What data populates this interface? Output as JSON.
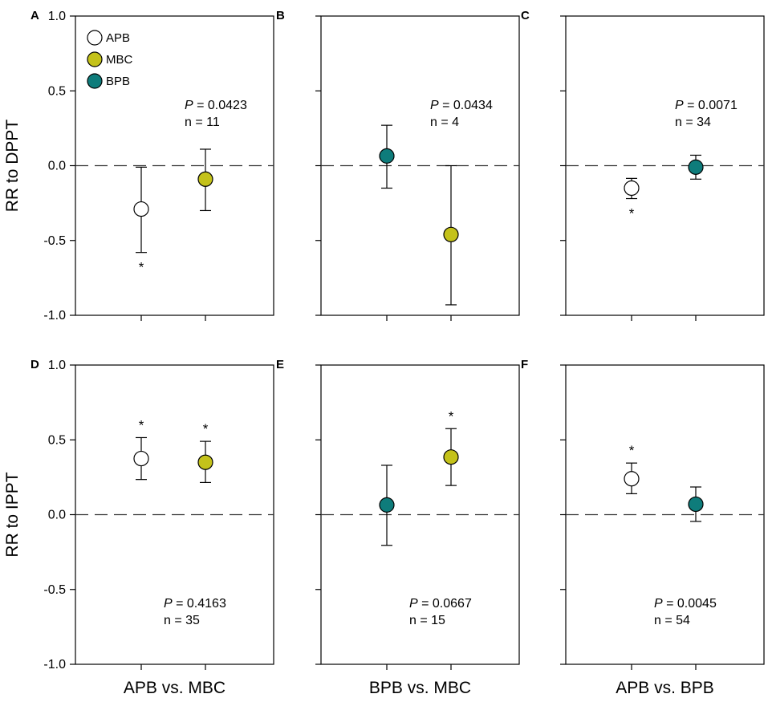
{
  "chart_data": {
    "type": "scatter",
    "subtype": "point-with-error-bars",
    "ylim": [
      -1.0,
      1.0
    ],
    "yticks": [
      -1.0,
      -0.5,
      0.0,
      0.5,
      1.0
    ],
    "yticklabels": [
      "-1.0",
      "-0.5",
      "0.0",
      "0.5",
      "1.0"
    ],
    "reference_line": 0.0,
    "row_ylabels": [
      "RR to DPPT",
      "RR to IPPT"
    ],
    "column_xlabels": [
      "APB vs. MBC",
      "BPB vs. MBC",
      "APB vs. BPB"
    ],
    "significance_marker": "*",
    "colors": {
      "APB": "#ffffff",
      "MBC": "#c4c21a",
      "BPB": "#0e7c7b"
    },
    "legend": [
      {
        "name": "APB",
        "label": "APB"
      },
      {
        "name": "MBC",
        "label": "MBC"
      },
      {
        "name": "BPB",
        "label": "BPB"
      }
    ],
    "panels": [
      {
        "id": "A",
        "letter": "A",
        "row": 0,
        "col": 0,
        "p_label": "P",
        "p_value": " = 0.0423",
        "n_text": "n = 11",
        "stat_pos": "top",
        "points": [
          {
            "group": "APB",
            "mean": -0.29,
            "lower": -0.58,
            "upper": -0.01,
            "star": true,
            "star_pos": "below"
          },
          {
            "group": "MBC",
            "mean": -0.09,
            "lower": -0.3,
            "upper": 0.11,
            "star": false
          }
        ]
      },
      {
        "id": "B",
        "letter": "B",
        "row": 0,
        "col": 1,
        "p_label": "P",
        "p_value": " = 0.0434",
        "n_text": "n = 4",
        "stat_pos": "top",
        "points": [
          {
            "group": "BPB",
            "mean": 0.065,
            "lower": -0.15,
            "upper": 0.27,
            "star": false
          },
          {
            "group": "MBC",
            "mean": -0.46,
            "lower": -0.93,
            "upper": 0.0,
            "star": false
          }
        ]
      },
      {
        "id": "C",
        "letter": "C",
        "row": 0,
        "col": 2,
        "p_label": "P",
        "p_value": " = 0.0071",
        "n_text": "n = 34",
        "stat_pos": "top",
        "points": [
          {
            "group": "APB",
            "mean": -0.15,
            "lower": -0.22,
            "upper": -0.085,
            "star": true,
            "star_pos": "below"
          },
          {
            "group": "BPB",
            "mean": -0.01,
            "lower": -0.09,
            "upper": 0.07,
            "star": false
          }
        ]
      },
      {
        "id": "D",
        "letter": "D",
        "row": 1,
        "col": 0,
        "p_label": "P",
        "p_value": " = 0.4163",
        "n_text": "n = 35",
        "stat_pos": "bottom",
        "points": [
          {
            "group": "APB",
            "mean": 0.375,
            "lower": 0.235,
            "upper": 0.515,
            "star": true,
            "star_pos": "above"
          },
          {
            "group": "MBC",
            "mean": 0.35,
            "lower": 0.215,
            "upper": 0.49,
            "star": true,
            "star_pos": "above"
          }
        ]
      },
      {
        "id": "E",
        "letter": "E",
        "row": 1,
        "col": 1,
        "p_label": "P",
        "p_value": " = 0.0667",
        "n_text": "n = 15",
        "stat_pos": "bottom",
        "points": [
          {
            "group": "BPB",
            "mean": 0.065,
            "lower": -0.205,
            "upper": 0.33,
            "star": false
          },
          {
            "group": "MBC",
            "mean": 0.385,
            "lower": 0.195,
            "upper": 0.575,
            "star": true,
            "star_pos": "above"
          }
        ]
      },
      {
        "id": "F",
        "letter": "F",
        "row": 1,
        "col": 2,
        "p_label": "P",
        "p_value": " = 0.0045",
        "n_text": "n = 54",
        "stat_pos": "bottom",
        "points": [
          {
            "group": "APB",
            "mean": 0.24,
            "lower": 0.14,
            "upper": 0.345,
            "star": true,
            "star_pos": "above"
          },
          {
            "group": "BPB",
            "mean": 0.07,
            "lower": -0.045,
            "upper": 0.185,
            "star": false
          }
        ]
      }
    ]
  }
}
